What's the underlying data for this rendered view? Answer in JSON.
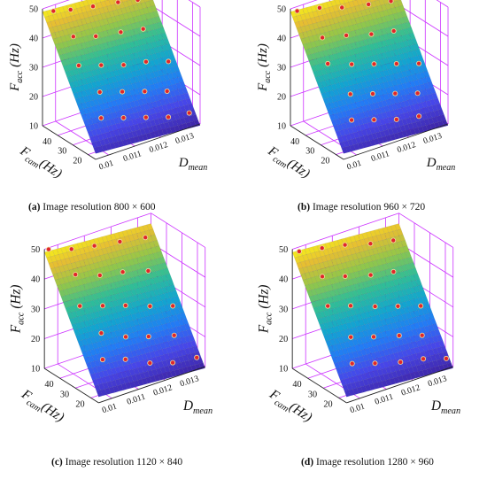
{
  "chart_data": [
    {
      "type": "surface",
      "caption_letter": "(a)",
      "caption_text": "Image resolution 800 × 600",
      "zlabel_main": "F",
      "zlabel_sub": "acc",
      "zlabel_unit": "(Hz)",
      "ylabel_main": "F",
      "ylabel_sub": "cam",
      "ylabel_unit": "(Hz)",
      "xlabel_main": "D",
      "xlabel_sub": "mean",
      "xlim": [
        0.0095,
        0.0135
      ],
      "ylim": [
        15,
        50
      ],
      "zlim": [
        10,
        50
      ],
      "x_ticks": [
        "0.01",
        "0.011",
        "0.012",
        "0.013"
      ],
      "y_ticks": [
        "20",
        "30",
        "40"
      ],
      "z_ticks": [
        "10",
        "20",
        "30",
        "40",
        "50"
      ],
      "grid": true,
      "surface_colormap": "parula",
      "points": [
        {
          "x": 0.0098,
          "y": 48,
          "z": 49
        },
        {
          "x": 0.0104,
          "y": 47,
          "z": 48
        },
        {
          "x": 0.0112,
          "y": 46,
          "z": 47
        },
        {
          "x": 0.0121,
          "y": 45,
          "z": 46
        },
        {
          "x": 0.0128,
          "y": 44,
          "z": 45
        },
        {
          "x": 0.0101,
          "y": 40,
          "z": 42
        },
        {
          "x": 0.0109,
          "y": 39,
          "z": 40
        },
        {
          "x": 0.0118,
          "y": 38,
          "z": 39
        },
        {
          "x": 0.0126,
          "y": 37,
          "z": 38
        },
        {
          "x": 0.0099,
          "y": 33,
          "z": 35
        },
        {
          "x": 0.0107,
          "y": 32,
          "z": 33
        },
        {
          "x": 0.0115,
          "y": 31,
          "z": 31
        },
        {
          "x": 0.0123,
          "y": 30,
          "z": 30
        },
        {
          "x": 0.0131,
          "y": 29,
          "z": 28
        },
        {
          "x": 0.0103,
          "y": 26,
          "z": 27
        },
        {
          "x": 0.0111,
          "y": 25,
          "z": 25
        },
        {
          "x": 0.0119,
          "y": 24,
          "z": 23
        },
        {
          "x": 0.0127,
          "y": 23,
          "z": 21
        },
        {
          "x": 0.01,
          "y": 20,
          "z": 21
        },
        {
          "x": 0.0108,
          "y": 19,
          "z": 19
        },
        {
          "x": 0.0116,
          "y": 18,
          "z": 17
        },
        {
          "x": 0.0124,
          "y": 17,
          "z": 15
        },
        {
          "x": 0.0132,
          "y": 17,
          "z": 14
        }
      ]
    },
    {
      "type": "surface",
      "caption_letter": "(b)",
      "caption_text": "Image resolution 960 × 720",
      "zlabel_main": "F",
      "zlabel_sub": "acc",
      "zlabel_unit": "(Hz)",
      "ylabel_main": "F",
      "ylabel_sub": "cam",
      "ylabel_unit": "(Hz)",
      "xlabel_main": "D",
      "xlabel_sub": "mean",
      "xlim": [
        0.0095,
        0.0135
      ],
      "ylim": [
        15,
        50
      ],
      "zlim": [
        10,
        50
      ],
      "x_ticks": [
        "0.01",
        "0.011",
        "0.012",
        "0.013"
      ],
      "y_ticks": [
        "20",
        "30",
        "40"
      ],
      "z_ticks": [
        "10",
        "20",
        "30",
        "40",
        "50"
      ],
      "grid": true,
      "surface_colormap": "parula",
      "points": [
        {
          "x": 0.0097,
          "y": 49,
          "z": 49
        },
        {
          "x": 0.0105,
          "y": 48,
          "z": 48
        },
        {
          "x": 0.0113,
          "y": 47,
          "z": 46
        },
        {
          "x": 0.0122,
          "y": 45,
          "z": 45
        },
        {
          "x": 0.013,
          "y": 44,
          "z": 44
        },
        {
          "x": 0.0102,
          "y": 41,
          "z": 41
        },
        {
          "x": 0.011,
          "y": 39,
          "z": 40
        },
        {
          "x": 0.0119,
          "y": 38,
          "z": 38
        },
        {
          "x": 0.0127,
          "y": 37,
          "z": 37
        },
        {
          "x": 0.01,
          "y": 34,
          "z": 35
        },
        {
          "x": 0.0108,
          "y": 32,
          "z": 33
        },
        {
          "x": 0.0116,
          "y": 31,
          "z": 31
        },
        {
          "x": 0.0124,
          "y": 30,
          "z": 29
        },
        {
          "x": 0.0132,
          "y": 29,
          "z": 27
        },
        {
          "x": 0.0104,
          "y": 26,
          "z": 26
        },
        {
          "x": 0.0112,
          "y": 25,
          "z": 24
        },
        {
          "x": 0.012,
          "y": 24,
          "z": 22
        },
        {
          "x": 0.0128,
          "y": 23,
          "z": 20
        },
        {
          "x": 0.0101,
          "y": 20,
          "z": 20
        },
        {
          "x": 0.0109,
          "y": 19,
          "z": 18
        },
        {
          "x": 0.0117,
          "y": 18,
          "z": 16
        },
        {
          "x": 0.0125,
          "y": 17,
          "z": 15
        }
      ]
    },
    {
      "type": "surface",
      "caption_letter": "(c)",
      "caption_text": "Image resolution 1120 × 840",
      "zlabel_main": "F",
      "zlabel_sub": "acc",
      "zlabel_unit": "(Hz)",
      "ylabel_main": "F",
      "ylabel_sub": "cam",
      "ylabel_unit": "(Hz)",
      "xlabel_main": "D",
      "xlabel_sub": "mean",
      "xlim": [
        0.0095,
        0.0135
      ],
      "ylim": [
        15,
        50
      ],
      "zlim": [
        10,
        50
      ],
      "x_ticks": [
        "0.01",
        "0.011",
        "0.012",
        "0.013"
      ],
      "y_ticks": [
        "20",
        "30",
        "40"
      ],
      "z_ticks": [
        "10",
        "20",
        "30",
        "40",
        "50"
      ],
      "grid": true,
      "surface_colormap": "parula",
      "points": [
        {
          "x": 0.0096,
          "y": 49,
          "z": 50
        },
        {
          "x": 0.0104,
          "y": 48,
          "z": 48
        },
        {
          "x": 0.0112,
          "y": 47,
          "z": 47
        },
        {
          "x": 0.0121,
          "y": 46,
          "z": 46
        },
        {
          "x": 0.013,
          "y": 45,
          "z": 45
        },
        {
          "x": 0.0102,
          "y": 42,
          "z": 42
        },
        {
          "x": 0.011,
          "y": 40,
          "z": 40
        },
        {
          "x": 0.0118,
          "y": 39,
          "z": 39
        },
        {
          "x": 0.0127,
          "y": 38,
          "z": 37
        },
        {
          "x": 0.0099,
          "y": 34,
          "z": 35
        },
        {
          "x": 0.0107,
          "y": 33,
          "z": 33
        },
        {
          "x": 0.0115,
          "y": 32,
          "z": 31
        },
        {
          "x": 0.0123,
          "y": 30,
          "z": 29
        },
        {
          "x": 0.0131,
          "y": 29,
          "z": 27
        },
        {
          "x": 0.0103,
          "y": 27,
          "z": 27
        },
        {
          "x": 0.0111,
          "y": 25,
          "z": 24
        },
        {
          "x": 0.0119,
          "y": 24,
          "z": 22
        },
        {
          "x": 0.0128,
          "y": 23,
          "z": 20
        },
        {
          "x": 0.01,
          "y": 21,
          "z": 21
        },
        {
          "x": 0.0108,
          "y": 20,
          "z": 19
        },
        {
          "x": 0.0116,
          "y": 18,
          "z": 16
        },
        {
          "x": 0.0124,
          "y": 17,
          "z": 14
        },
        {
          "x": 0.0133,
          "y": 17,
          "z": 13
        }
      ]
    },
    {
      "type": "surface",
      "caption_letter": "(d)",
      "caption_text": "Image resolution 1280 × 960",
      "zlabel_main": "F",
      "zlabel_sub": "acc",
      "zlabel_unit": "(Hz)",
      "ylabel_main": "F",
      "ylabel_sub": "cam",
      "ylabel_unit": "(Hz)",
      "xlabel_main": "D",
      "xlabel_sub": "mean",
      "xlim": [
        0.0095,
        0.0135
      ],
      "ylim": [
        15,
        50
      ],
      "zlim": [
        10,
        50
      ],
      "x_ticks": [
        "0.01",
        "0.011",
        "0.012",
        "0.013"
      ],
      "y_ticks": [
        "20",
        "30",
        "40"
      ],
      "z_ticks": [
        "10",
        "20",
        "30",
        "40",
        "50"
      ],
      "grid": true,
      "surface_colormap": "parula",
      "points": [
        {
          "x": 0.0097,
          "y": 49,
          "z": 49
        },
        {
          "x": 0.0105,
          "y": 48,
          "z": 48
        },
        {
          "x": 0.0113,
          "y": 47,
          "z": 47
        },
        {
          "x": 0.0122,
          "y": 46,
          "z": 45
        },
        {
          "x": 0.013,
          "y": 45,
          "z": 44
        },
        {
          "x": 0.0101,
          "y": 41,
          "z": 42
        },
        {
          "x": 0.0109,
          "y": 40,
          "z": 40
        },
        {
          "x": 0.0118,
          "y": 39,
          "z": 38
        },
        {
          "x": 0.0126,
          "y": 38,
          "z": 37
        },
        {
          "x": 0.0099,
          "y": 34,
          "z": 35
        },
        {
          "x": 0.0107,
          "y": 33,
          "z": 33
        },
        {
          "x": 0.0115,
          "y": 31,
          "z": 31
        },
        {
          "x": 0.0123,
          "y": 30,
          "z": 29
        },
        {
          "x": 0.0131,
          "y": 29,
          "z": 27
        },
        {
          "x": 0.0103,
          "y": 26,
          "z": 26
        },
        {
          "x": 0.0111,
          "y": 25,
          "z": 24
        },
        {
          "x": 0.012,
          "y": 24,
          "z": 22
        },
        {
          "x": 0.0128,
          "y": 23,
          "z": 20
        },
        {
          "x": 0.01,
          "y": 20,
          "z": 20
        },
        {
          "x": 0.0108,
          "y": 19,
          "z": 18
        },
        {
          "x": 0.0117,
          "y": 18,
          "z": 16
        },
        {
          "x": 0.0125,
          "y": 17,
          "z": 15
        },
        {
          "x": 0.0133,
          "y": 16,
          "z": 13
        }
      ]
    }
  ],
  "colors": {
    "grid": "#cc33ff",
    "point_fill": "#e0262b",
    "point_edge": "#f0e0a0",
    "axis": "#222222"
  }
}
